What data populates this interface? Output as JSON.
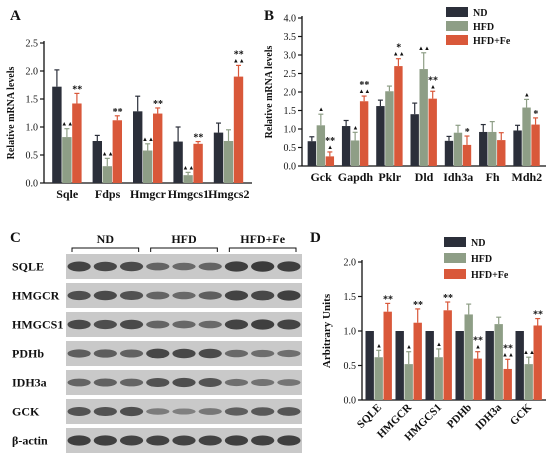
{
  "colors": {
    "ND": "#2b2f3a",
    "HFD": "#8e9e86",
    "HFD+Fe": "#d9583a",
    "blot_bg": "#c9c9c9",
    "band": "#2a2a2a"
  },
  "legend_labels": [
    "ND",
    "HFD",
    "HFD+Fe"
  ],
  "chart_data": [
    {
      "panel": "A",
      "type": "bar",
      "ylabel": "Relative mRNA levels",
      "ylim": [
        0,
        2.5
      ],
      "yticks": [
        0.0,
        0.5,
        1.0,
        1.5,
        2.0,
        2.5
      ],
      "ytick_labels": [
        "0.0",
        "0.5",
        "1.0",
        "1.5",
        "2.0",
        "2.5"
      ],
      "categories": [
        "Sqle",
        "Fdps",
        "Hmgcr",
        "Hmgcs1",
        "Hmgcs2"
      ],
      "series": [
        {
          "name": "ND",
          "values": [
            1.72,
            0.75,
            1.28,
            0.74,
            0.9
          ],
          "err": [
            0.3,
            0.1,
            0.27,
            0.26,
            0.17
          ]
        },
        {
          "name": "HFD",
          "values": [
            0.82,
            0.3,
            0.58,
            0.14,
            0.75
          ],
          "err": [
            0.15,
            0.14,
            0.12,
            0.05,
            0.2
          ]
        },
        {
          "name": "HFD+Fe",
          "values": [
            1.42,
            1.12,
            1.24,
            0.7,
            1.9
          ],
          "err": [
            0.18,
            0.08,
            0.1,
            0.04,
            0.2
          ]
        }
      ],
      "annotations": [
        {
          "cat": 0,
          "series": 1,
          "text": "▲▲"
        },
        {
          "cat": 0,
          "series": 2,
          "text": "**"
        },
        {
          "cat": 1,
          "series": 1,
          "text": "▲▲"
        },
        {
          "cat": 1,
          "series": 2,
          "text": "**"
        },
        {
          "cat": 2,
          "series": 1,
          "text": "▲▲"
        },
        {
          "cat": 2,
          "series": 2,
          "text": "**"
        },
        {
          "cat": 3,
          "series": 1,
          "text": "▲▲"
        },
        {
          "cat": 3,
          "series": 2,
          "text": "**"
        },
        {
          "cat": 4,
          "series": 2,
          "text": "**\n▲▲"
        }
      ]
    },
    {
      "panel": "B",
      "type": "bar",
      "ylabel": "Relative mRNA levels",
      "ylim": [
        0,
        4.0
      ],
      "yticks": [
        0.0,
        0.5,
        1.0,
        1.5,
        2.0,
        2.5,
        3.0,
        3.5,
        4.0
      ],
      "ytick_labels": [
        "0.0",
        "0.5",
        "1.0",
        "1.5",
        "2.0",
        "2.5",
        "3.0",
        "3.5",
        "4.0"
      ],
      "categories": [
        "Gck",
        "Gapdh",
        "Pklr",
        "Dld",
        "Idh3a",
        "Fh",
        "Mdh2"
      ],
      "series": [
        {
          "name": "ND",
          "values": [
            0.67,
            1.08,
            1.62,
            1.4,
            0.68,
            0.92,
            0.96
          ],
          "err": [
            0.12,
            0.15,
            0.16,
            0.3,
            0.12,
            0.2,
            0.14
          ]
        },
        {
          "name": "HFD",
          "values": [
            1.1,
            0.69,
            2.02,
            2.62,
            0.9,
            0.92,
            1.58
          ],
          "err": [
            0.3,
            0.22,
            0.14,
            0.44,
            0.2,
            0.28,
            0.22
          ]
        },
        {
          "name": "HFD+Fe",
          "values": [
            0.26,
            1.75,
            2.7,
            1.82,
            0.57,
            0.7,
            1.12
          ],
          "err": [
            0.12,
            0.14,
            0.2,
            0.2,
            0.24,
            0.2,
            0.18
          ]
        }
      ],
      "annotations": [
        {
          "cat": 0,
          "series": 1,
          "text": "▲"
        },
        {
          "cat": 0,
          "series": 2,
          "text": "**\n▲"
        },
        {
          "cat": 1,
          "series": 1,
          "text": "▲"
        },
        {
          "cat": 1,
          "series": 2,
          "text": "**\n▲▲"
        },
        {
          "cat": 2,
          "series": 2,
          "text": "*\n▲▲"
        },
        {
          "cat": 3,
          "series": 1,
          "text": "▲▲"
        },
        {
          "cat": 3,
          "series": 2,
          "text": "**\n▲"
        },
        {
          "cat": 4,
          "series": 2,
          "text": "*"
        },
        {
          "cat": 6,
          "series": 1,
          "text": "▲"
        },
        {
          "cat": 6,
          "series": 2,
          "text": "*"
        }
      ]
    },
    {
      "panel": "D",
      "type": "bar",
      "ylabel": "Arbitrary Units",
      "ylim": [
        0,
        2.0
      ],
      "yticks": [
        0.0,
        0.5,
        1.0,
        1.5,
        2.0
      ],
      "ytick_labels": [
        "0.0",
        "0.5",
        "1.0",
        "1.5",
        "2.0"
      ],
      "categories": [
        "SQLE",
        "HMGCR",
        "HMGCS1",
        "PDHb",
        "IDH3a",
        "GCK"
      ],
      "series": [
        {
          "name": "ND",
          "values": [
            1.0,
            1.0,
            1.0,
            1.0,
            1.0,
            1.0
          ],
          "err": [
            0,
            0,
            0,
            0,
            0,
            0
          ]
        },
        {
          "name": "HFD",
          "values": [
            0.62,
            0.52,
            0.62,
            1.24,
            1.1,
            0.52
          ],
          "err": [
            0.1,
            0.18,
            0.12,
            0.15,
            0.1,
            0.1
          ]
        },
        {
          "name": "HFD+Fe",
          "values": [
            1.28,
            1.12,
            1.3,
            0.6,
            0.45,
            1.08
          ],
          "err": [
            0.12,
            0.2,
            0.12,
            0.1,
            0.14,
            0.1
          ]
        }
      ],
      "annotations": [
        {
          "cat": 0,
          "series": 1,
          "text": "▲"
        },
        {
          "cat": 0,
          "series": 2,
          "text": "**"
        },
        {
          "cat": 1,
          "series": 1,
          "text": "▲"
        },
        {
          "cat": 1,
          "series": 2,
          "text": "**"
        },
        {
          "cat": 2,
          "series": 1,
          "text": "▲"
        },
        {
          "cat": 2,
          "series": 2,
          "text": "**"
        },
        {
          "cat": 3,
          "series": 2,
          "text": "**\n▲"
        },
        {
          "cat": 4,
          "series": 2,
          "text": "**\n▲▲"
        },
        {
          "cat": 5,
          "series": 1,
          "text": "▲▲"
        },
        {
          "cat": 5,
          "series": 2,
          "text": "**"
        }
      ]
    }
  ],
  "western_blot": {
    "panel": "C",
    "group_labels": [
      "ND",
      "HFD",
      "HFD+Fe"
    ],
    "rows": [
      {
        "label": "SQLE",
        "intensities": [
          0.85,
          0.8,
          0.78,
          0.55,
          0.5,
          0.55,
          0.9,
          0.92,
          0.9
        ]
      },
      {
        "label": "HMGCR",
        "intensities": [
          0.75,
          0.78,
          0.72,
          0.55,
          0.5,
          0.6,
          0.85,
          0.82,
          0.88
        ]
      },
      {
        "label": "HMGCS1",
        "intensities": [
          0.8,
          0.75,
          0.78,
          0.55,
          0.52,
          0.5,
          0.85,
          0.88,
          0.85
        ]
      },
      {
        "label": "PDHb",
        "intensities": [
          0.6,
          0.62,
          0.58,
          0.82,
          0.8,
          0.78,
          0.5,
          0.48,
          0.45
        ]
      },
      {
        "label": "IDH3a",
        "intensities": [
          0.55,
          0.58,
          0.55,
          0.72,
          0.75,
          0.7,
          0.45,
          0.42,
          0.4
        ]
      },
      {
        "label": "GCK",
        "intensities": [
          0.7,
          0.72,
          0.75,
          0.35,
          0.3,
          0.38,
          0.6,
          0.65,
          0.68
        ]
      },
      {
        "label": "β-actin",
        "intensities": [
          0.88,
          0.88,
          0.86,
          0.86,
          0.85,
          0.86,
          0.88,
          0.87,
          0.88
        ]
      }
    ]
  }
}
